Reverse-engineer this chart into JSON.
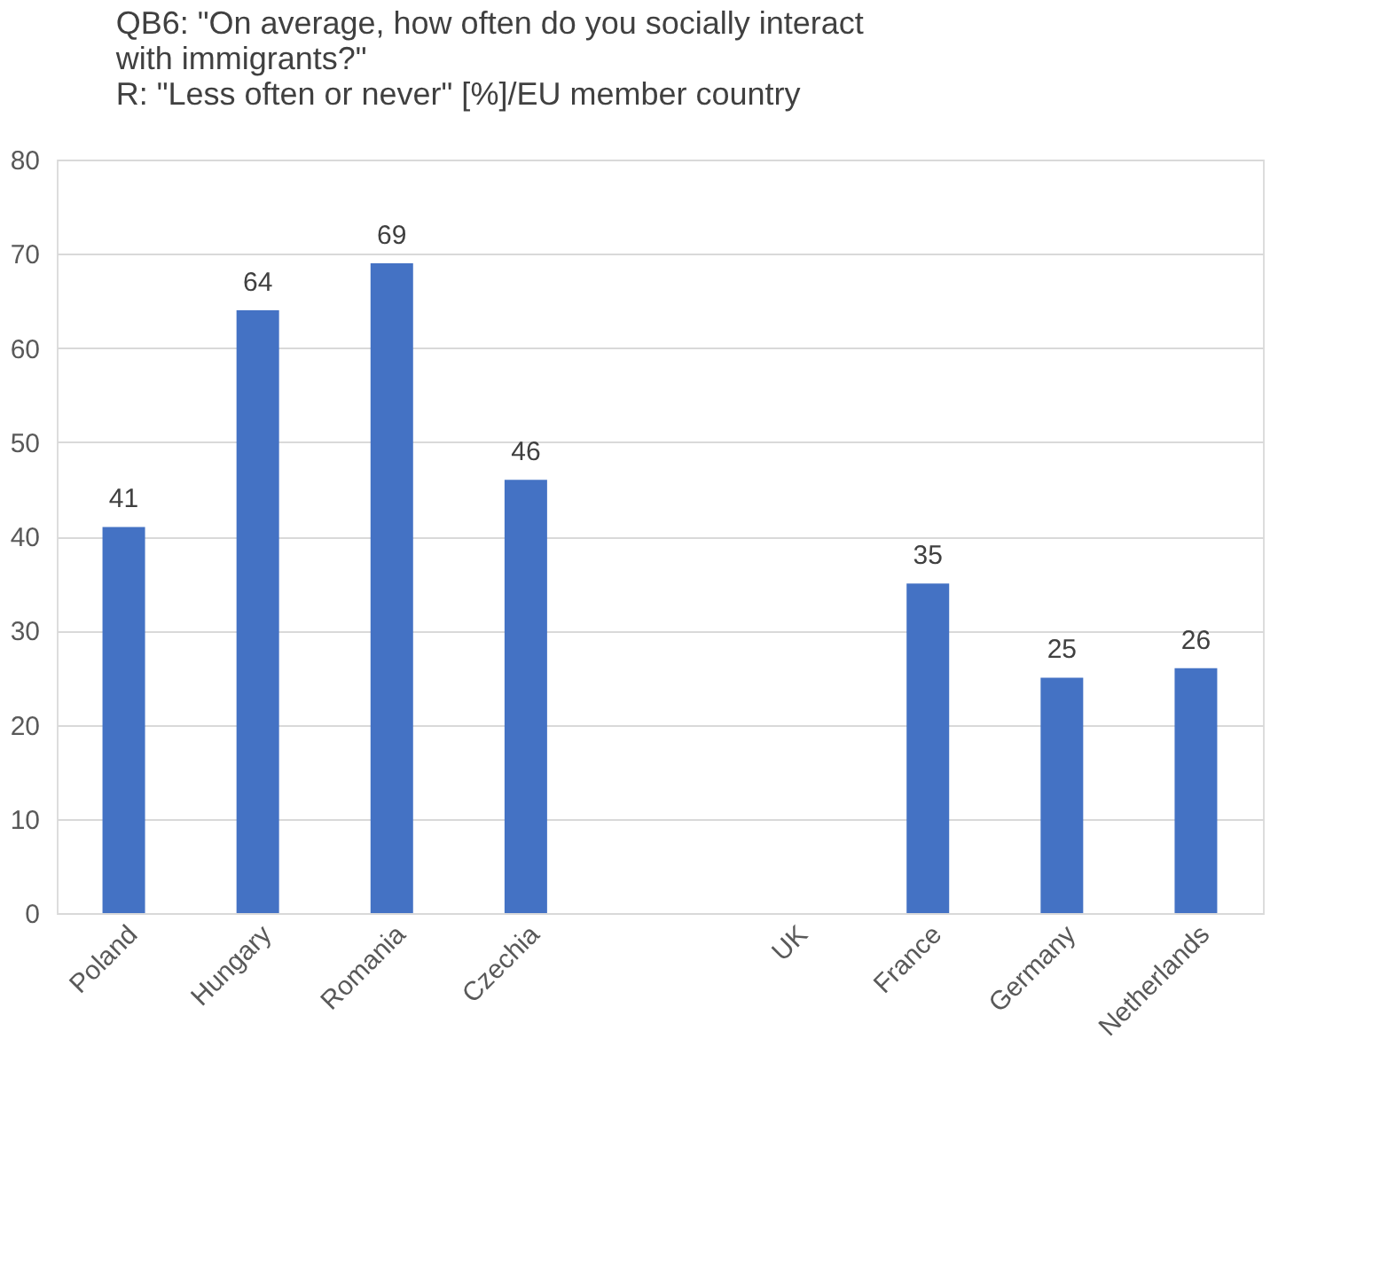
{
  "chart_data": {
    "type": "bar",
    "title": [
      "QB6: \"On average, how often do you socially interact",
      "with immigrants?\"",
      "R: \"Less often or never\" [%]/EU member country"
    ],
    "categories": [
      "Poland",
      "Hungary",
      "Romania",
      "Czechia",
      null,
      "UK",
      "France",
      "Germany",
      "Netherlands"
    ],
    "values": [
      41,
      64,
      69,
      46,
      null,
      null,
      35,
      25,
      26
    ],
    "color": "#4472c4",
    "ylim": [
      0,
      80
    ],
    "yticks": [
      0,
      10,
      20,
      30,
      40,
      50,
      60,
      70,
      80
    ],
    "grid": "y",
    "data_labels": true
  }
}
